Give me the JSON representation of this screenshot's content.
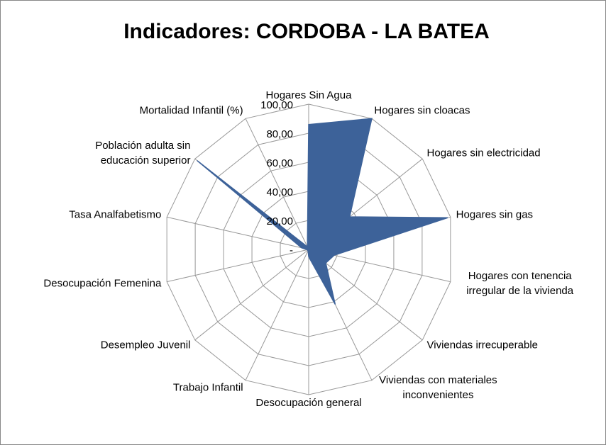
{
  "chart_data": {
    "type": "radar",
    "title": "Indicadores: CORDOBA - LA BATEA",
    "categories": [
      [
        "Hogares Sin Agua"
      ],
      [
        "Hogares sin cloacas"
      ],
      [
        "Hogares sin electricidad"
      ],
      [
        "Hogares sin gas"
      ],
      [
        "Hogares con tenencia",
        "irregular de la vivienda"
      ],
      [
        "Viviendas irrecuperable"
      ],
      [
        "Viviendas con materiales",
        "inconvenientes"
      ],
      [
        "Desocupación general"
      ],
      [
        "Trabajo Infantil"
      ],
      [
        "Desempleo Juvenil"
      ],
      [
        "Desocupación Femenina"
      ],
      [
        "Tasa Analfabetismo"
      ],
      [
        "Población adulta  sin",
        "educación superior"
      ],
      [
        "Mortalidad Infantil (%)"
      ]
    ],
    "values": [
      86,
      100,
      36,
      98,
      18,
      15,
      42,
      5,
      1,
      1,
      1,
      5,
      98,
      2
    ],
    "color": "#3d6299",
    "ylim": [
      0,
      100
    ],
    "yticks": [
      {
        "value": 0,
        "label": "-"
      },
      {
        "value": 20,
        "label": "20,00"
      },
      {
        "value": 40,
        "label": "40,00"
      },
      {
        "value": 60,
        "label": "60,00"
      },
      {
        "value": 80,
        "label": "80,00"
      },
      {
        "value": 100,
        "label": "100,00"
      }
    ],
    "grid": true
  }
}
